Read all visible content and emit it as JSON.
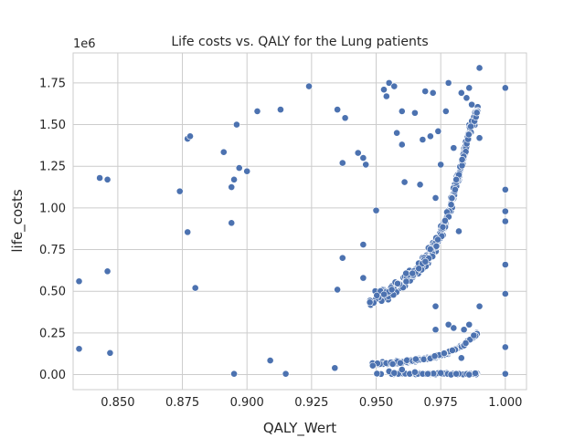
{
  "chart_data": {
    "type": "scatter",
    "title": "Life costs vs. QALY for the Lung patients",
    "xlabel": "QALY_Wert",
    "ylabel": "life_costs",
    "y_offset_text": "1e6",
    "xlim": [
      0.8327,
      1.0082
    ],
    "ylim": [
      -0.09,
      1.93
    ],
    "y_scale_factor": 1000000,
    "x_ticks": [
      0.85,
      0.875,
      0.9,
      0.925,
      0.95,
      0.975,
      1.0
    ],
    "x_tick_labels": [
      "0.850",
      "0.875",
      "0.900",
      "0.925",
      "0.950",
      "0.975",
      "1.000"
    ],
    "y_ticks": [
      0.0,
      0.25,
      0.5,
      0.75,
      1.0,
      1.25,
      1.5,
      1.75
    ],
    "y_tick_labels": [
      "0.00",
      "0.25",
      "0.50",
      "0.75",
      "1.00",
      "1.25",
      "1.50",
      "1.75"
    ],
    "grid": true,
    "marker_color": "#4c72b0",
    "marker_edge": "#ffffff",
    "points": [
      [
        0.835,
        0.56
      ],
      [
        0.835,
        0.155
      ],
      [
        0.843,
        1.18
      ],
      [
        0.846,
        1.17
      ],
      [
        0.846,
        0.62
      ],
      [
        0.847,
        0.13
      ],
      [
        0.874,
        1.1
      ],
      [
        0.877,
        0.855
      ],
      [
        0.877,
        1.415
      ],
      [
        0.878,
        1.43
      ],
      [
        0.88,
        0.52
      ],
      [
        0.891,
        1.335
      ],
      [
        0.894,
        0.91
      ],
      [
        0.894,
        1.125
      ],
      [
        0.895,
        1.17
      ],
      [
        0.896,
        1.5
      ],
      [
        0.895,
        0.005
      ],
      [
        0.897,
        1.24
      ],
      [
        0.9,
        1.22
      ],
      [
        0.904,
        1.58
      ],
      [
        0.909,
        0.085
      ],
      [
        0.913,
        1.59
      ],
      [
        0.915,
        0.005
      ],
      [
        0.924,
        1.73
      ],
      [
        0.934,
        0.04
      ],
      [
        0.935,
        1.59
      ],
      [
        0.935,
        0.51
      ],
      [
        0.937,
        1.27
      ],
      [
        0.937,
        0.7
      ],
      [
        0.938,
        1.54
      ],
      [
        0.943,
        1.33
      ],
      [
        0.945,
        1.3
      ],
      [
        0.945,
        0.78
      ],
      [
        0.945,
        0.58
      ],
      [
        0.946,
        1.26
      ],
      [
        0.95,
        0.985
      ],
      [
        0.953,
        1.71
      ],
      [
        0.954,
        1.67
      ],
      [
        0.955,
        1.75
      ],
      [
        0.957,
        1.73
      ],
      [
        0.958,
        1.45
      ],
      [
        0.96,
        1.58
      ],
      [
        0.96,
        1.38
      ],
      [
        0.961,
        1.155
      ],
      [
        0.965,
        1.57
      ],
      [
        0.967,
        1.14
      ],
      [
        0.968,
        1.41
      ],
      [
        0.969,
        1.7
      ],
      [
        0.971,
        1.43
      ],
      [
        0.972,
        1.69
      ],
      [
        0.973,
        1.06
      ],
      [
        0.974,
        1.46
      ],
      [
        0.975,
        1.26
      ],
      [
        0.977,
        1.58
      ],
      [
        0.978,
        1.75
      ],
      [
        0.98,
        1.36
      ],
      [
        0.981,
        1.17
      ],
      [
        0.982,
        0.86
      ],
      [
        0.983,
        1.69
      ],
      [
        0.985,
        1.66
      ],
      [
        0.986,
        1.72
      ],
      [
        0.987,
        1.62
      ],
      [
        0.99,
        1.84
      ],
      [
        0.99,
        1.42
      ],
      [
        0.99,
        0.41
      ],
      [
        0.973,
        0.41
      ],
      [
        0.978,
        0.3
      ],
      [
        0.98,
        0.28
      ],
      [
        0.984,
        0.27
      ],
      [
        0.986,
        0.3
      ],
      [
        0.973,
        0.27
      ],
      [
        0.955,
        0.02
      ],
      [
        0.957,
        0.01
      ],
      [
        0.96,
        0.03
      ],
      [
        0.963,
        0.005
      ],
      [
        0.965,
        0.015
      ],
      [
        0.968,
        0.005
      ],
      [
        0.97,
        0.005
      ],
      [
        0.975,
        0.01
      ],
      [
        0.979,
        0.0
      ],
      [
        0.981,
        0.005
      ],
      [
        0.983,
        0.1
      ],
      [
        0.986,
        0.0
      ],
      [
        1.0,
        1.72
      ],
      [
        1.0,
        1.11
      ],
      [
        1.0,
        0.98
      ],
      [
        1.0,
        0.92
      ],
      [
        1.0,
        0.66
      ],
      [
        1.0,
        0.485
      ],
      [
        1.0,
        0.165
      ],
      [
        1.0,
        0.005
      ]
    ],
    "band_upper": {
      "x_start": 0.9475,
      "x_end": 0.9895,
      "count": 320,
      "anchors": [
        [
          0.9475,
          0.45
        ],
        [
          0.955,
          0.5
        ],
        [
          0.962,
          0.57
        ],
        [
          0.968,
          0.66
        ],
        [
          0.973,
          0.78
        ],
        [
          0.977,
          0.91
        ],
        [
          0.98,
          1.08
        ],
        [
          0.983,
          1.25
        ],
        [
          0.986,
          1.45
        ],
        [
          0.9895,
          1.6
        ]
      ],
      "spread": 0.055
    },
    "band_lower": {
      "x_start": 0.9475,
      "x_end": 0.9895,
      "count": 150,
      "anchors": [
        [
          0.9475,
          0.06
        ],
        [
          0.96,
          0.075
        ],
        [
          0.97,
          0.095
        ],
        [
          0.978,
          0.13
        ],
        [
          0.984,
          0.18
        ],
        [
          0.9895,
          0.25
        ]
      ],
      "spread": 0.012
    },
    "band_bottom": {
      "x_start": 0.9475,
      "x_end": 0.9895,
      "count": 60,
      "level": 0.005,
      "spread": 0.006
    }
  }
}
